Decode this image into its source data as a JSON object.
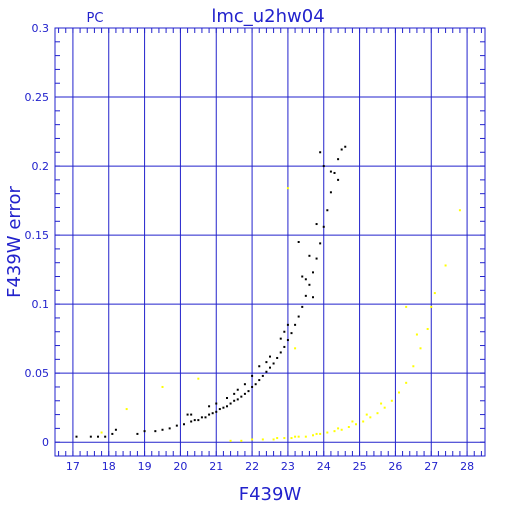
{
  "chart_data": {
    "type": "scatter",
    "title": "lmc_u2hw04",
    "subtitle": "PC",
    "xlabel": "F439W",
    "ylabel": "F439W error",
    "xlim": [
      16.5,
      28.5
    ],
    "ylim": [
      -0.01,
      0.3
    ],
    "x_ticks": [
      17,
      18,
      19,
      20,
      21,
      22,
      23,
      24,
      25,
      26,
      27,
      28
    ],
    "y_ticks": [
      0,
      0.05,
      0.1,
      0.15,
      0.2,
      0.25,
      0.3
    ],
    "x_tick_labels": [
      "17",
      "18",
      "19",
      "20",
      "21",
      "22",
      "23",
      "24",
      "25",
      "26",
      "27",
      "28"
    ],
    "y_tick_labels": [
      "0",
      "0.05",
      "0.1",
      "0.15",
      "0.2",
      "0.25",
      "0.3"
    ],
    "grid": true,
    "colors": {
      "axes": "#2222cc",
      "grid": "#2222cc"
    },
    "series": [
      {
        "color": "#000000",
        "points": [
          [
            17.1,
            0.004
          ],
          [
            17.5,
            0.004
          ],
          [
            17.7,
            0.004
          ],
          [
            17.9,
            0.004
          ],
          [
            18.1,
            0.006
          ],
          [
            18.2,
            0.009
          ],
          [
            18.8,
            0.006
          ],
          [
            19.0,
            0.008
          ],
          [
            19.3,
            0.008
          ],
          [
            19.5,
            0.009
          ],
          [
            19.7,
            0.01
          ],
          [
            19.9,
            0.012
          ],
          [
            20.1,
            0.013
          ],
          [
            20.2,
            0.02
          ],
          [
            20.3,
            0.015
          ],
          [
            20.4,
            0.016
          ],
          [
            20.5,
            0.016
          ],
          [
            20.6,
            0.018
          ],
          [
            20.7,
            0.018
          ],
          [
            20.8,
            0.02
          ],
          [
            20.9,
            0.021
          ],
          [
            21.0,
            0.022
          ],
          [
            21.1,
            0.024
          ],
          [
            21.2,
            0.025
          ],
          [
            21.3,
            0.026
          ],
          [
            21.4,
            0.028
          ],
          [
            21.5,
            0.03
          ],
          [
            21.6,
            0.031
          ],
          [
            21.7,
            0.033
          ],
          [
            21.8,
            0.035
          ],
          [
            21.9,
            0.037
          ],
          [
            22.0,
            0.04
          ],
          [
            22.1,
            0.042
          ],
          [
            22.2,
            0.045
          ],
          [
            22.3,
            0.048
          ],
          [
            22.4,
            0.051
          ],
          [
            22.5,
            0.054
          ],
          [
            22.6,
            0.057
          ],
          [
            22.7,
            0.061
          ],
          [
            22.8,
            0.065
          ],
          [
            22.9,
            0.069
          ],
          [
            23.0,
            0.074
          ],
          [
            23.1,
            0.079
          ],
          [
            23.2,
            0.085
          ],
          [
            23.3,
            0.091
          ],
          [
            23.4,
            0.098
          ],
          [
            23.5,
            0.106
          ],
          [
            23.6,
            0.114
          ],
          [
            23.7,
            0.123
          ],
          [
            23.8,
            0.133
          ],
          [
            23.9,
            0.144
          ],
          [
            24.0,
            0.156
          ],
          [
            24.1,
            0.168
          ],
          [
            24.2,
            0.181
          ],
          [
            24.3,
            0.195
          ],
          [
            24.4,
            0.205
          ],
          [
            24.5,
            0.212
          ],
          [
            24.6,
            0.214
          ],
          [
            21.0,
            0.028
          ],
          [
            21.5,
            0.035
          ],
          [
            22.0,
            0.048
          ],
          [
            22.5,
            0.062
          ],
          [
            23.0,
            0.085
          ],
          [
            23.5,
            0.118
          ],
          [
            24.0,
            0.2
          ],
          [
            23.9,
            0.21
          ],
          [
            23.3,
            0.145
          ],
          [
            23.4,
            0.12
          ],
          [
            22.8,
            0.075
          ],
          [
            22.2,
            0.055
          ],
          [
            21.8,
            0.042
          ],
          [
            21.3,
            0.032
          ],
          [
            20.8,
            0.026
          ],
          [
            20.3,
            0.02
          ],
          [
            24.2,
            0.196
          ],
          [
            24.4,
            0.19
          ],
          [
            23.6,
            0.135
          ],
          [
            22.9,
            0.08
          ],
          [
            22.4,
            0.058
          ],
          [
            21.6,
            0.038
          ],
          [
            23.7,
            0.105
          ],
          [
            23.8,
            0.158
          ]
        ]
      },
      {
        "color": "#ffff00",
        "points": [
          [
            17.8,
            0.007
          ],
          [
            18.5,
            0.024
          ],
          [
            19.5,
            0.04
          ],
          [
            20.5,
            0.046
          ],
          [
            21.4,
            0.001
          ],
          [
            21.7,
            0.001
          ],
          [
            22.0,
            0.002
          ],
          [
            22.3,
            0.002
          ],
          [
            22.6,
            0.002
          ],
          [
            22.9,
            0.003
          ],
          [
            23.1,
            0.003
          ],
          [
            23.3,
            0.004
          ],
          [
            23.5,
            0.004
          ],
          [
            23.7,
            0.005
          ],
          [
            23.9,
            0.006
          ],
          [
            24.1,
            0.007
          ],
          [
            24.3,
            0.008
          ],
          [
            24.5,
            0.009
          ],
          [
            24.7,
            0.011
          ],
          [
            24.9,
            0.013
          ],
          [
            25.1,
            0.015
          ],
          [
            25.3,
            0.018
          ],
          [
            25.5,
            0.021
          ],
          [
            25.7,
            0.025
          ],
          [
            25.9,
            0.03
          ],
          [
            26.1,
            0.036
          ],
          [
            26.3,
            0.043
          ],
          [
            26.5,
            0.055
          ],
          [
            26.7,
            0.068
          ],
          [
            26.9,
            0.082
          ],
          [
            27.0,
            0.098
          ],
          [
            27.1,
            0.108
          ],
          [
            27.4,
            0.128
          ],
          [
            27.8,
            0.168
          ],
          [
            26.3,
            0.098
          ],
          [
            26.6,
            0.078
          ],
          [
            25.6,
            0.028
          ],
          [
            25.2,
            0.02
          ],
          [
            24.8,
            0.015
          ],
          [
            24.4,
            0.01
          ],
          [
            23.8,
            0.006
          ],
          [
            23.2,
            0.004
          ],
          [
            22.7,
            0.003
          ],
          [
            23.0,
            0.184
          ],
          [
            23.2,
            0.068
          ]
        ]
      }
    ]
  }
}
